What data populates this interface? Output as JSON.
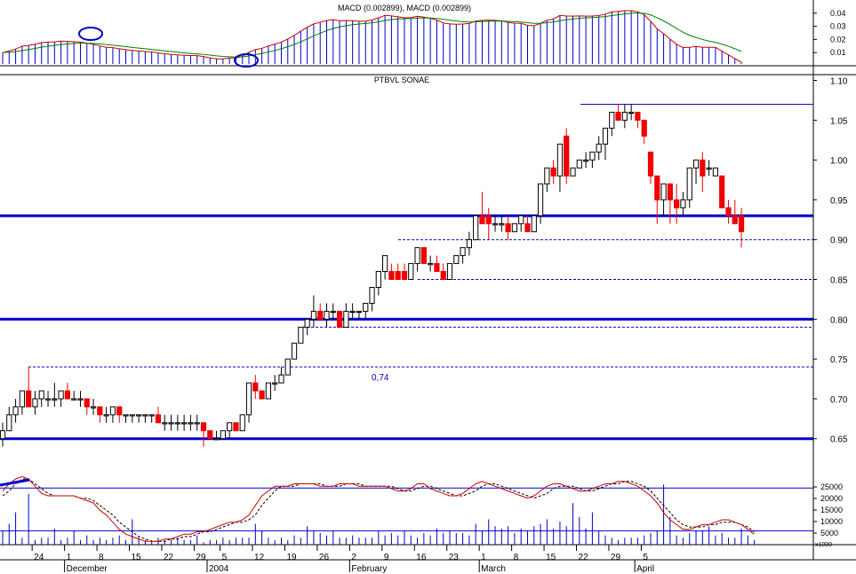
{
  "colors": {
    "support_line": "#0000cc",
    "macd_histogram": "#0000cc",
    "macd_line": "#cc0000",
    "signal_line": "#008000",
    "up_candle_fill": "#ffffff",
    "down_candle_fill": "#ee0000",
    "stochastic_k": "#cc0000",
    "stochastic_d": "#000000",
    "volume_bar": "#0000cc"
  },
  "chart_data": [
    {
      "panel": "macd",
      "type": "line",
      "title": "MACD (0.002899), MACD (0.002899)",
      "ylim": [
        0,
        0.05
      ],
      "ytick_labels": [
        "0.04",
        "0.03",
        "0.02",
        "0.01"
      ],
      "ytick_values": [
        0.04,
        0.03,
        0.02,
        0.01
      ],
      "annotations": [
        "circle-on-crossover-early-december",
        "circle-on-crossover-early-january"
      ],
      "series": []
    },
    {
      "panel": "price",
      "type": "candlestick",
      "title": "PTBVL SONAE",
      "ylim": [
        0.62,
        1.11
      ],
      "ytick_labels": [
        "1.10",
        "1.05",
        "1.00",
        "0.95",
        "0.90",
        "0.85",
        "0.80",
        "0.75",
        "0.70",
        "0.65"
      ],
      "ytick_values": [
        1.1,
        1.05,
        1.0,
        0.95,
        0.9,
        0.85,
        0.8,
        0.75,
        0.7,
        0.65
      ],
      "horizontal_lines": [
        {
          "value": 0.93,
          "style": "solid-thick"
        },
        {
          "value": 0.8,
          "style": "solid-thick"
        },
        {
          "value": 0.65,
          "style": "solid-thick"
        },
        {
          "value": 1.07,
          "style": "solid-thin"
        },
        {
          "value": 0.9,
          "style": "dashed"
        },
        {
          "value": 0.85,
          "style": "dashed"
        },
        {
          "value": 0.79,
          "style": "dashed"
        },
        {
          "value": 0.74,
          "style": "dashed"
        }
      ],
      "annotation_text": "0,74",
      "candles": [
        [
          0.65,
          0.67,
          0.64,
          0.66
        ],
        [
          0.66,
          0.69,
          0.66,
          0.68
        ],
        [
          0.68,
          0.7,
          0.67,
          0.69
        ],
        [
          0.69,
          0.71,
          0.68,
          0.71
        ],
        [
          0.71,
          0.74,
          0.69,
          0.69
        ],
        [
          0.69,
          0.71,
          0.68,
          0.7
        ],
        [
          0.7,
          0.71,
          0.69,
          0.71
        ],
        [
          0.7,
          0.71,
          0.69,
          0.7
        ],
        [
          0.7,
          0.72,
          0.69,
          0.7
        ],
        [
          0.7,
          0.71,
          0.69,
          0.71
        ],
        [
          0.71,
          0.72,
          0.7,
          0.7
        ],
        [
          0.7,
          0.71,
          0.7,
          0.7
        ],
        [
          0.7,
          0.71,
          0.69,
          0.7
        ],
        [
          0.7,
          0.7,
          0.68,
          0.69
        ],
        [
          0.69,
          0.7,
          0.68,
          0.69
        ],
        [
          0.69,
          0.69,
          0.67,
          0.68
        ],
        [
          0.68,
          0.69,
          0.67,
          0.68
        ],
        [
          0.68,
          0.69,
          0.67,
          0.69
        ],
        [
          0.69,
          0.69,
          0.67,
          0.68
        ],
        [
          0.68,
          0.68,
          0.67,
          0.68
        ],
        [
          0.68,
          0.68,
          0.67,
          0.68
        ],
        [
          0.68,
          0.68,
          0.67,
          0.68
        ],
        [
          0.68,
          0.68,
          0.67,
          0.68
        ],
        [
          0.68,
          0.68,
          0.67,
          0.68
        ],
        [
          0.68,
          0.69,
          0.67,
          0.67
        ],
        [
          0.67,
          0.68,
          0.66,
          0.67
        ],
        [
          0.67,
          0.68,
          0.66,
          0.67
        ],
        [
          0.67,
          0.68,
          0.66,
          0.67
        ],
        [
          0.67,
          0.68,
          0.66,
          0.67
        ],
        [
          0.67,
          0.68,
          0.66,
          0.67
        ],
        [
          0.67,
          0.68,
          0.66,
          0.67
        ],
        [
          0.67,
          0.67,
          0.64,
          0.66
        ],
        [
          0.66,
          0.66,
          0.65,
          0.65
        ],
        [
          0.65,
          0.66,
          0.65,
          0.65
        ],
        [
          0.65,
          0.66,
          0.65,
          0.66
        ],
        [
          0.66,
          0.67,
          0.65,
          0.67
        ],
        [
          0.67,
          0.67,
          0.66,
          0.66
        ],
        [
          0.66,
          0.68,
          0.66,
          0.68
        ],
        [
          0.68,
          0.72,
          0.67,
          0.72
        ],
        [
          0.72,
          0.73,
          0.7,
          0.71
        ],
        [
          0.71,
          0.71,
          0.7,
          0.7
        ],
        [
          0.7,
          0.72,
          0.7,
          0.72
        ],
        [
          0.72,
          0.73,
          0.71,
          0.72
        ],
        [
          0.72,
          0.74,
          0.72,
          0.73
        ],
        [
          0.73,
          0.75,
          0.73,
          0.75
        ],
        [
          0.75,
          0.77,
          0.75,
          0.77
        ],
        [
          0.77,
          0.79,
          0.77,
          0.79
        ],
        [
          0.79,
          0.8,
          0.78,
          0.8
        ],
        [
          0.8,
          0.83,
          0.79,
          0.81
        ],
        [
          0.81,
          0.82,
          0.8,
          0.8
        ],
        [
          0.8,
          0.82,
          0.79,
          0.81
        ],
        [
          0.81,
          0.82,
          0.8,
          0.81
        ],
        [
          0.81,
          0.81,
          0.79,
          0.79
        ],
        [
          0.79,
          0.82,
          0.79,
          0.81
        ],
        [
          0.81,
          0.82,
          0.8,
          0.81
        ],
        [
          0.81,
          0.81,
          0.8,
          0.81
        ],
        [
          0.81,
          0.82,
          0.8,
          0.82
        ],
        [
          0.82,
          0.84,
          0.81,
          0.84
        ],
        [
          0.84,
          0.86,
          0.83,
          0.86
        ],
        [
          0.86,
          0.88,
          0.85,
          0.88
        ],
        [
          0.86,
          0.87,
          0.85,
          0.85
        ],
        [
          0.86,
          0.87,
          0.85,
          0.85
        ],
        [
          0.86,
          0.87,
          0.85,
          0.85
        ],
        [
          0.85,
          0.87,
          0.85,
          0.87
        ],
        [
          0.87,
          0.89,
          0.86,
          0.89
        ],
        [
          0.89,
          0.89,
          0.87,
          0.87
        ],
        [
          0.87,
          0.88,
          0.86,
          0.87
        ],
        [
          0.87,
          0.88,
          0.86,
          0.86
        ],
        [
          0.86,
          0.87,
          0.85,
          0.85
        ],
        [
          0.85,
          0.87,
          0.85,
          0.87
        ],
        [
          0.87,
          0.88,
          0.87,
          0.88
        ],
        [
          0.88,
          0.89,
          0.87,
          0.89
        ],
        [
          0.89,
          0.91,
          0.88,
          0.9
        ],
        [
          0.9,
          0.93,
          0.9,
          0.93
        ],
        [
          0.93,
          0.96,
          0.92,
          0.92
        ],
        [
          0.93,
          0.94,
          0.9,
          0.92
        ],
        [
          0.92,
          0.93,
          0.91,
          0.92
        ],
        [
          0.92,
          0.93,
          0.91,
          0.92
        ],
        [
          0.92,
          0.93,
          0.9,
          0.91
        ],
        [
          0.91,
          0.92,
          0.91,
          0.92
        ],
        [
          0.92,
          0.93,
          0.91,
          0.93
        ],
        [
          0.92,
          0.93,
          0.91,
          0.91
        ],
        [
          0.91,
          0.93,
          0.91,
          0.93
        ],
        [
          0.93,
          0.97,
          0.92,
          0.97
        ],
        [
          0.97,
          0.99,
          0.96,
          0.99
        ],
        [
          0.99,
          1.0,
          0.97,
          0.98
        ],
        [
          0.98,
          1.02,
          0.96,
          1.02
        ],
        [
          1.03,
          1.04,
          0.97,
          0.98
        ],
        [
          0.98,
          0.99,
          0.98,
          0.99
        ],
        [
          0.99,
          1.0,
          0.99,
          1.0
        ],
        [
          1.0,
          1.01,
          0.99,
          1.0
        ],
        [
          1.0,
          1.01,
          0.99,
          1.01
        ],
        [
          1.01,
          1.03,
          1.0,
          1.02
        ],
        [
          1.02,
          1.04,
          1.0,
          1.04
        ],
        [
          1.04,
          1.06,
          1.03,
          1.06
        ],
        [
          1.06,
          1.07,
          1.05,
          1.05
        ],
        [
          1.05,
          1.07,
          1.04,
          1.06
        ],
        [
          1.06,
          1.07,
          1.05,
          1.06
        ],
        [
          1.06,
          1.06,
          1.04,
          1.05
        ],
        [
          1.05,
          1.05,
          1.02,
          1.03
        ],
        [
          1.01,
          1.01,
          0.97,
          0.98
        ],
        [
          0.98,
          0.98,
          0.92,
          0.95
        ],
        [
          0.95,
          0.97,
          0.93,
          0.97
        ],
        [
          0.97,
          0.97,
          0.92,
          0.95
        ],
        [
          0.95,
          0.97,
          0.92,
          0.94
        ],
        [
          0.94,
          0.96,
          0.93,
          0.95
        ],
        [
          0.95,
          0.99,
          0.94,
          0.99
        ],
        [
          0.99,
          1.0,
          0.97,
          1.0
        ],
        [
          1.0,
          1.01,
          0.96,
          0.98
        ],
        [
          0.99,
          1.0,
          0.98,
          0.99
        ],
        [
          0.98,
          0.99,
          0.98,
          0.99
        ],
        [
          0.98,
          0.98,
          0.94,
          0.94
        ],
        [
          0.94,
          0.95,
          0.92,
          0.93
        ],
        [
          0.93,
          0.95,
          0.92,
          0.92
        ],
        [
          0.93,
          0.94,
          0.89,
          0.91
        ]
      ]
    },
    {
      "panel": "stochastic-volume",
      "type": "line",
      "ytick_labels": [
        "25000",
        "20000",
        "15000",
        "10000",
        "5000"
      ],
      "ytick_values": [
        25000,
        20000,
        15000,
        10000,
        5000
      ],
      "ylim": [
        0,
        30000
      ],
      "horizontal_lines": [
        {
          "value": 24500,
          "style": "solid-thin"
        },
        {
          "value": 6000,
          "style": "solid-thin"
        }
      ],
      "scale_label": "x1000",
      "stochastic_k": [
        22,
        25,
        27,
        28,
        27,
        24,
        21,
        20,
        20,
        20,
        20,
        20,
        19,
        18,
        17,
        14,
        12,
        9,
        6,
        4,
        3,
        2,
        1,
        1,
        1,
        2,
        2,
        3,
        4,
        4,
        5,
        5,
        6,
        7,
        8,
        9,
        9,
        10,
        12,
        16,
        20,
        22,
        24,
        24,
        24,
        25,
        25,
        25,
        25,
        24,
        24,
        24,
        25,
        25,
        25,
        24,
        24,
        24,
        24,
        24,
        23,
        22,
        22,
        23,
        25,
        25,
        23,
        22,
        21,
        20,
        20,
        21,
        23,
        25,
        26,
        25,
        24,
        23,
        22,
        21,
        20,
        19,
        20,
        22,
        24,
        25,
        25,
        24,
        23,
        22,
        22,
        23,
        24,
        25,
        25,
        26,
        26,
        25,
        24,
        22,
        20,
        17,
        13,
        10,
        8,
        6,
        6,
        7,
        8,
        8,
        9,
        10,
        10,
        9,
        8,
        6,
        4
      ],
      "stochastic_d": [
        20,
        22,
        25,
        27,
        27,
        25,
        23,
        21,
        20,
        20,
        20,
        20,
        19,
        19,
        18,
        16,
        14,
        12,
        9,
        7,
        5,
        3,
        2,
        1,
        1,
        1,
        2,
        2,
        3,
        3,
        4,
        5,
        5,
        6,
        7,
        8,
        9,
        9,
        10,
        12,
        16,
        19,
        22,
        24,
        24,
        24,
        25,
        25,
        25,
        25,
        24,
        24,
        24,
        25,
        25,
        25,
        24,
        24,
        24,
        24,
        24,
        23,
        22,
        22,
        23,
        24,
        24,
        23,
        22,
        21,
        20,
        20,
        21,
        22,
        24,
        25,
        25,
        24,
        23,
        22,
        21,
        20,
        19,
        20,
        21,
        23,
        24,
        24,
        24,
        23,
        22,
        22,
        23,
        24,
        25,
        25,
        26,
        26,
        25,
        24,
        22,
        19,
        16,
        13,
        10,
        8,
        7,
        7,
        7,
        8,
        8,
        9,
        9,
        9,
        8,
        7,
        5
      ],
      "volume": [
        6,
        9,
        14,
        3,
        22,
        2,
        3,
        3,
        7,
        2,
        3,
        6,
        2,
        4,
        2,
        3,
        2,
        3,
        4,
        2,
        11,
        3,
        2,
        2,
        3,
        2,
        2,
        3,
        2,
        2,
        4,
        1,
        2,
        2,
        3,
        2,
        3,
        3,
        3,
        9,
        6,
        3,
        2,
        3,
        2,
        4,
        3,
        8,
        6,
        5,
        4,
        6,
        3,
        3,
        4,
        3,
        3,
        3,
        6,
        4,
        5,
        4,
        6,
        4,
        3,
        5,
        4,
        7,
        5,
        6,
        5,
        5,
        4,
        9,
        6,
        11,
        8,
        7,
        8,
        5,
        7,
        6,
        8,
        9,
        11,
        7,
        10,
        8,
        18,
        12,
        7,
        14,
        6,
        4,
        3,
        2,
        3,
        3,
        3,
        4,
        5,
        6,
        26,
        12,
        4,
        3,
        5,
        6,
        6,
        8,
        4,
        5,
        3,
        3,
        7,
        4,
        2
      ]
    }
  ],
  "x_axis": {
    "labels": [
      {
        "text": "24",
        "i": 4
      },
      {
        "text": "1",
        "i": 9
      },
      {
        "text": "8",
        "i": 14
      },
      {
        "text": "15",
        "i": 19
      },
      {
        "text": "22",
        "i": 24
      },
      {
        "text": "29",
        "i": 29
      },
      {
        "text": "5",
        "i": 33
      },
      {
        "text": "12",
        "i": 38
      },
      {
        "text": "19",
        "i": 43
      },
      {
        "text": "26",
        "i": 48
      },
      {
        "text": "2",
        "i": 53
      },
      {
        "text": "9",
        "i": 58
      },
      {
        "text": "16",
        "i": 63
      },
      {
        "text": "23",
        "i": 68
      },
      {
        "text": "1",
        "i": 73
      },
      {
        "text": "8",
        "i": 78
      },
      {
        "text": "15",
        "i": 83
      },
      {
        "text": "22",
        "i": 88
      },
      {
        "text": "29",
        "i": 93
      },
      {
        "text": "5",
        "i": 98
      }
    ],
    "months": [
      {
        "text": "December",
        "i": 9
      },
      {
        "text": "2004",
        "i": 31
      },
      {
        "text": "February",
        "i": 53
      },
      {
        "text": "March",
        "i": 73
      },
      {
        "text": "April",
        "i": 97
      }
    ]
  }
}
